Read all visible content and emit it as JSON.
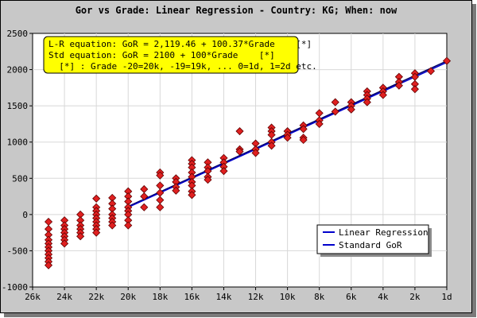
{
  "chart_data": {
    "type": "scatter",
    "title": "Gor vs Grade: Linear Regression - Country: KG; When: now",
    "xlabel": "",
    "ylabel": "",
    "x_tick_labels": [
      "26k",
      "24k",
      "22k",
      "20k",
      "18k",
      "16k",
      "14k",
      "12k",
      "10k",
      "8k",
      "6k",
      "4k",
      "2k",
      "1d"
    ],
    "x_tick_values": [
      -26,
      -24,
      -22,
      -20,
      -18,
      -16,
      -14,
      -12,
      -10,
      -8,
      -6,
      -4,
      -2,
      0
    ],
    "xlim": [
      -26,
      0
    ],
    "ylim": [
      -1000,
      2500
    ],
    "y_ticks": [
      -1000,
      -500,
      0,
      500,
      1000,
      1500,
      2000,
      2500
    ],
    "grid": true,
    "annotation": {
      "line1": "L-R equation: GoR = 2,119.46 + 100.37*Grade    [*]",
      "line2": "Std equation: GoR = 2100 + 100*Grade    [*]",
      "line3": "  [*] : Grade -20=20k, -19=19k, ... 0=1d, 1=2d etc."
    },
    "legend": {
      "position": "bottom-right",
      "entries": [
        {
          "name": "Linear Regression",
          "color": "#0000cc"
        },
        {
          "name": "Standard GoR",
          "color": "#0000cc"
        }
      ]
    },
    "lines": [
      {
        "name": "Linear Regression",
        "intercept": 2119.46,
        "slope": 100.37,
        "x_range": [
          -20,
          0
        ],
        "color": "#000066"
      },
      {
        "name": "Standard GoR",
        "intercept": 2100,
        "slope": 100,
        "x_range": [
          -20,
          0
        ],
        "color": "#0000cc"
      }
    ],
    "marker_color": "#e02020",
    "points": [
      {
        "x": -25,
        "y": -100
      },
      {
        "x": -25,
        "y": -200
      },
      {
        "x": -25,
        "y": -280
      },
      {
        "x": -25,
        "y": -350
      },
      {
        "x": -25,
        "y": -400
      },
      {
        "x": -25,
        "y": -450
      },
      {
        "x": -25,
        "y": -500
      },
      {
        "x": -25,
        "y": -550
      },
      {
        "x": -25,
        "y": -600
      },
      {
        "x": -25,
        "y": -650
      },
      {
        "x": -25,
        "y": -700
      },
      {
        "x": -24,
        "y": -80
      },
      {
        "x": -24,
        "y": -150
      },
      {
        "x": -24,
        "y": -200
      },
      {
        "x": -24,
        "y": -250
      },
      {
        "x": -24,
        "y": -300
      },
      {
        "x": -24,
        "y": -350
      },
      {
        "x": -24,
        "y": -400
      },
      {
        "x": -23,
        "y": 0
      },
      {
        "x": -23,
        "y": -80
      },
      {
        "x": -23,
        "y": -150
      },
      {
        "x": -23,
        "y": -200
      },
      {
        "x": -23,
        "y": -250
      },
      {
        "x": -23,
        "y": -300
      },
      {
        "x": -22,
        "y": 220
      },
      {
        "x": -22,
        "y": 100
      },
      {
        "x": -22,
        "y": 50
      },
      {
        "x": -22,
        "y": 0
      },
      {
        "x": -22,
        "y": -50
      },
      {
        "x": -22,
        "y": -100
      },
      {
        "x": -22,
        "y": -150
      },
      {
        "x": -22,
        "y": -200
      },
      {
        "x": -22,
        "y": -250
      },
      {
        "x": -21,
        "y": 230
      },
      {
        "x": -21,
        "y": 150
      },
      {
        "x": -21,
        "y": 80
      },
      {
        "x": -21,
        "y": 0
      },
      {
        "x": -21,
        "y": -50
      },
      {
        "x": -21,
        "y": -100
      },
      {
        "x": -21,
        "y": -150
      },
      {
        "x": -20,
        "y": 320
      },
      {
        "x": -20,
        "y": 250
      },
      {
        "x": -20,
        "y": 180
      },
      {
        "x": -20,
        "y": 100
      },
      {
        "x": -20,
        "y": 50
      },
      {
        "x": -20,
        "y": 0
      },
      {
        "x": -20,
        "y": -80
      },
      {
        "x": -20,
        "y": -150
      },
      {
        "x": -19,
        "y": 350
      },
      {
        "x": -19,
        "y": 250
      },
      {
        "x": -19,
        "y": 100
      },
      {
        "x": -18,
        "y": 580
      },
      {
        "x": -18,
        "y": 540
      },
      {
        "x": -18,
        "y": 400
      },
      {
        "x": -18,
        "y": 300
      },
      {
        "x": -18,
        "y": 200
      },
      {
        "x": -18,
        "y": 100
      },
      {
        "x": -17,
        "y": 500
      },
      {
        "x": -17,
        "y": 450
      },
      {
        "x": -17,
        "y": 380
      },
      {
        "x": -17,
        "y": 330
      },
      {
        "x": -16,
        "y": 750
      },
      {
        "x": -16,
        "y": 700
      },
      {
        "x": -16,
        "y": 650
      },
      {
        "x": -16,
        "y": 580
      },
      {
        "x": -16,
        "y": 520
      },
      {
        "x": -16,
        "y": 450
      },
      {
        "x": -16,
        "y": 400
      },
      {
        "x": -16,
        "y": 320
      },
      {
        "x": -16,
        "y": 270
      },
      {
        "x": -15,
        "y": 720
      },
      {
        "x": -15,
        "y": 650
      },
      {
        "x": -15,
        "y": 600
      },
      {
        "x": -15,
        "y": 520
      },
      {
        "x": -15,
        "y": 480
      },
      {
        "x": -14,
        "y": 780
      },
      {
        "x": -14,
        "y": 720
      },
      {
        "x": -14,
        "y": 660
      },
      {
        "x": -14,
        "y": 600
      },
      {
        "x": -13,
        "y": 1150
      },
      {
        "x": -13,
        "y": 900
      },
      {
        "x": -13,
        "y": 870
      },
      {
        "x": -12,
        "y": 980
      },
      {
        "x": -12,
        "y": 900
      },
      {
        "x": -12,
        "y": 850
      },
      {
        "x": -11,
        "y": 1200
      },
      {
        "x": -11,
        "y": 1150
      },
      {
        "x": -11,
        "y": 1100
      },
      {
        "x": -11,
        "y": 1000
      },
      {
        "x": -11,
        "y": 950
      },
      {
        "x": -10,
        "y": 1150
      },
      {
        "x": -10,
        "y": 1100
      },
      {
        "x": -10,
        "y": 1060
      },
      {
        "x": -9,
        "y": 1230
      },
      {
        "x": -9,
        "y": 1180
      },
      {
        "x": -9,
        "y": 1060
      },
      {
        "x": -9,
        "y": 1030
      },
      {
        "x": -8,
        "y": 1400
      },
      {
        "x": -8,
        "y": 1300
      },
      {
        "x": -8,
        "y": 1250
      },
      {
        "x": -7,
        "y": 1550
      },
      {
        "x": -7,
        "y": 1420
      },
      {
        "x": -6,
        "y": 1550
      },
      {
        "x": -6,
        "y": 1500
      },
      {
        "x": -6,
        "y": 1450
      },
      {
        "x": -5,
        "y": 1700
      },
      {
        "x": -5,
        "y": 1650
      },
      {
        "x": -5,
        "y": 1600
      },
      {
        "x": -5,
        "y": 1550
      },
      {
        "x": -4,
        "y": 1750
      },
      {
        "x": -4,
        "y": 1700
      },
      {
        "x": -4,
        "y": 1650
      },
      {
        "x": -3,
        "y": 1900
      },
      {
        "x": -3,
        "y": 1830
      },
      {
        "x": -3,
        "y": 1780
      },
      {
        "x": -2,
        "y": 1950
      },
      {
        "x": -2,
        "y": 1900
      },
      {
        "x": -2,
        "y": 1800
      },
      {
        "x": -2,
        "y": 1730
      },
      {
        "x": -1,
        "y": 1980
      },
      {
        "x": 0,
        "y": 2120
      }
    ]
  }
}
